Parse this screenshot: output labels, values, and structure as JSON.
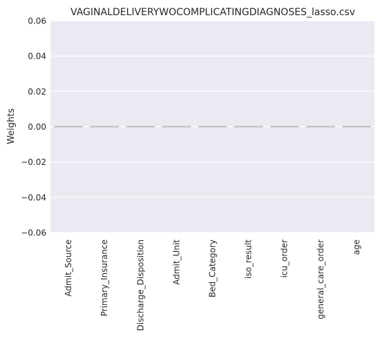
{
  "chart_data": {
    "type": "bar",
    "title": "VAGINALDELIVERYWOCOMPLICATINGDIAGNOSES_lasso.csv",
    "xlabel": "",
    "ylabel": "Weights",
    "categories": [
      "Admit_Source",
      "Primary_Insurance",
      "Discharge_Disposition",
      "Admit_Unit",
      "Bed_Category",
      "iso_result",
      "icu_order",
      "general_care_order",
      "age"
    ],
    "values": [
      0,
      0,
      0,
      0,
      0,
      0,
      0,
      0,
      0
    ],
    "ylim": [
      -0.06,
      0.06
    ],
    "yticks": [
      "−0.06",
      "−0.04",
      "−0.02",
      "0.00",
      "0.02",
      "0.04",
      "0.06"
    ],
    "grid": true,
    "colors": {
      "background": "#eaeaf2",
      "grid": "#ffffff",
      "bar_line": "#bdbdbd"
    }
  }
}
